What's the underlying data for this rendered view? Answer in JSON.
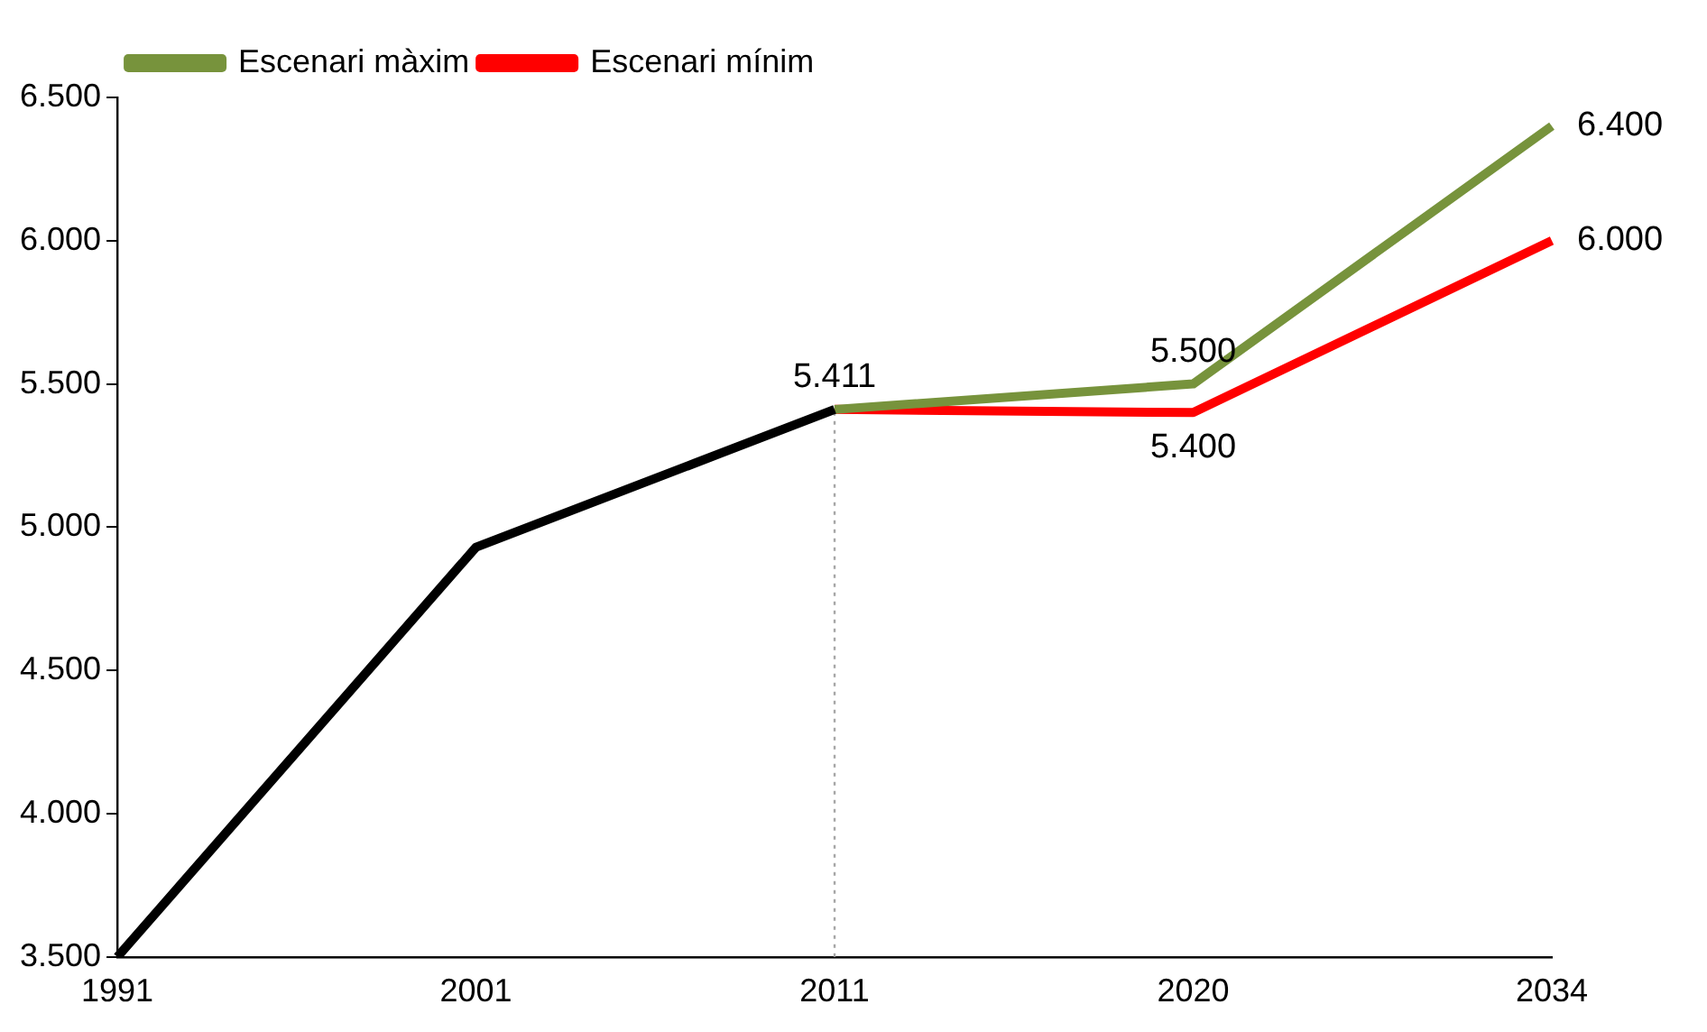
{
  "chart_data": {
    "type": "line",
    "categories": [
      "1991",
      "2001",
      "2011",
      "2020",
      "2034"
    ],
    "series": [
      {
        "color": "#000000",
        "values": [
          3500,
          4930,
          5411,
          null,
          null
        ],
        "value_labels": [
          null,
          null,
          "5.411",
          null,
          null
        ]
      },
      {
        "name": "Escenari màxim",
        "color": "#77933c",
        "values": [
          null,
          null,
          5411,
          5500,
          6400
        ],
        "value_labels": [
          null,
          null,
          null,
          "5.500",
          "6.400"
        ]
      },
      {
        "name": "Escenari mínim",
        "color": "#ff0000",
        "values": [
          null,
          null,
          5411,
          5400,
          6000
        ],
        "value_labels": [
          null,
          null,
          null,
          "5.400",
          "6.000"
        ]
      }
    ],
    "ylim": [
      3500,
      6500
    ],
    "yticks": [
      {
        "value": 3500,
        "label": "3.500"
      },
      {
        "value": 4000,
        "label": "4.000"
      },
      {
        "value": 4500,
        "label": "4.500"
      },
      {
        "value": 5000,
        "label": "5.000"
      },
      {
        "value": 5500,
        "label": "5.500"
      },
      {
        "value": 6000,
        "label": "6.000"
      },
      {
        "value": 6500,
        "label": "6.500"
      }
    ],
    "ref_lines": [
      {
        "axis": "x",
        "value": "2011",
        "color": "#a6a6a6",
        "line_style": "dotted"
      }
    ],
    "grid": false,
    "legend": "top left",
    "marker": "none",
    "line_style": "solid"
  }
}
